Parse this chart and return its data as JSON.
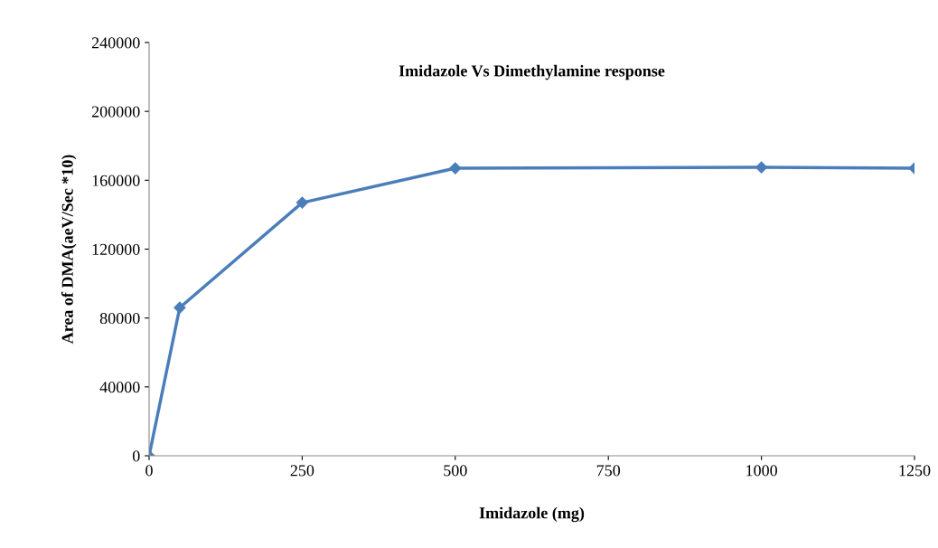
{
  "chart_data": {
    "type": "line",
    "title": "Imidazole Vs Dimethylamine response",
    "xlabel": "Imidazole (mg)",
    "ylabel": "Area of DMA(aeV/Sec *10)",
    "x": [
      0,
      50,
      250,
      500,
      1000,
      1250
    ],
    "series": [
      {
        "color": "#4a7ebb",
        "values": [
          0,
          86000,
          147000,
          167000,
          167500,
          167000
        ]
      }
    ],
    "xlim": [
      0,
      1250
    ],
    "xticks": [
      0,
      250,
      500,
      750,
      1000,
      1250
    ],
    "ylim": [
      0,
      240000
    ],
    "yticks": [
      0,
      40000,
      80000,
      120000,
      160000,
      200000,
      240000
    ],
    "marker": "diamond",
    "line_style": "solid",
    "grid": false,
    "legend": false
  }
}
